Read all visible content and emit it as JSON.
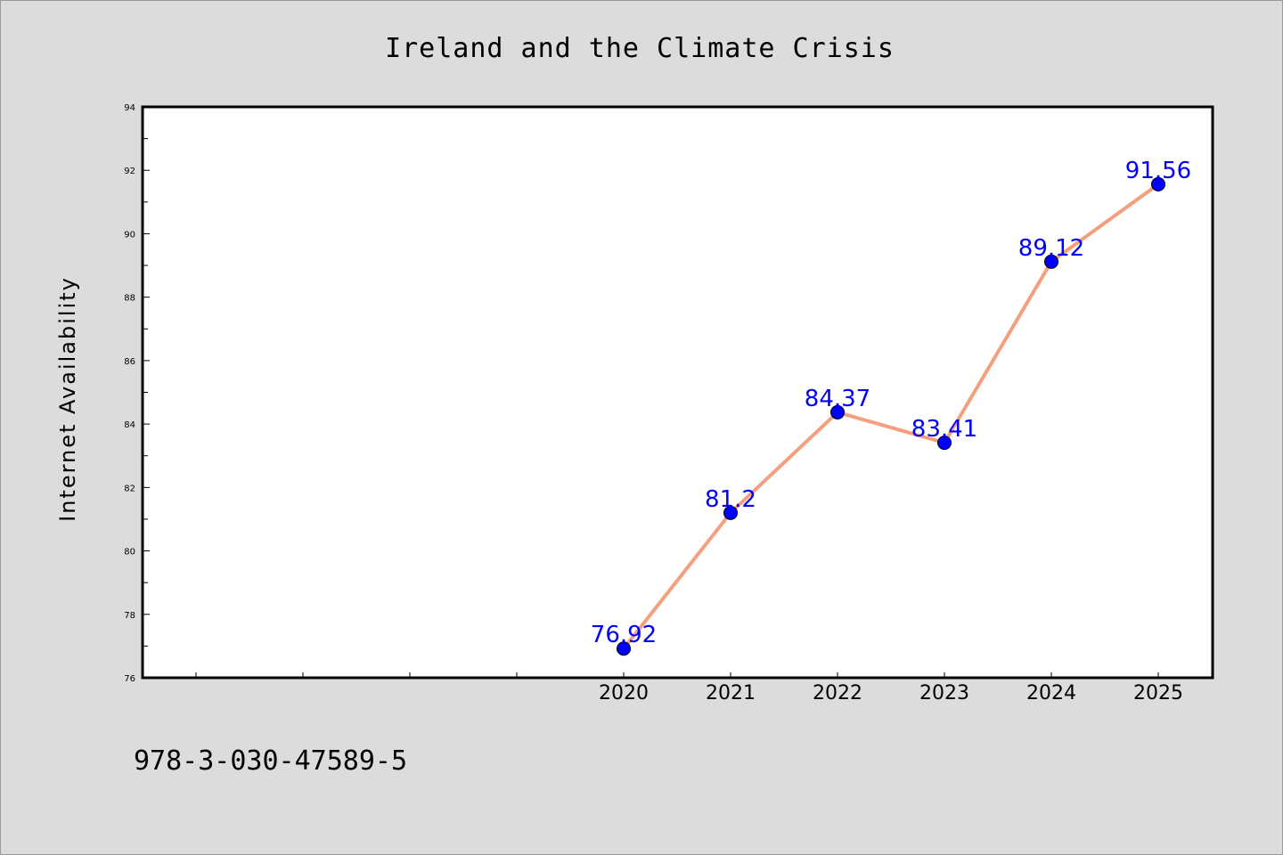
{
  "chart_data": {
    "type": "line",
    "title": "Ireland and the Climate Crisis",
    "xlabel": "",
    "ylabel": "Internet Availability",
    "categories": [
      "2020",
      "2021",
      "2022",
      "2023",
      "2024",
      "2025"
    ],
    "series": [
      {
        "values": [
          76.92,
          81.2,
          84.37,
          83.41,
          89.12,
          91.56
        ],
        "labels": [
          "76.92",
          "81.2",
          "84.37",
          "83.41",
          "89.12",
          "91.56"
        ]
      }
    ],
    "ylim": [
      76,
      94
    ],
    "yticks": [
      "76",
      "78",
      "80",
      "82",
      "84",
      "86",
      "88",
      "90",
      "92",
      "94"
    ],
    "grid": false,
    "line_color": "#f4a07e",
    "marker_color": "#0000ff",
    "label_color": "#0000ff"
  },
  "footer": {
    "isbn": "978-3-030-47589-5"
  }
}
